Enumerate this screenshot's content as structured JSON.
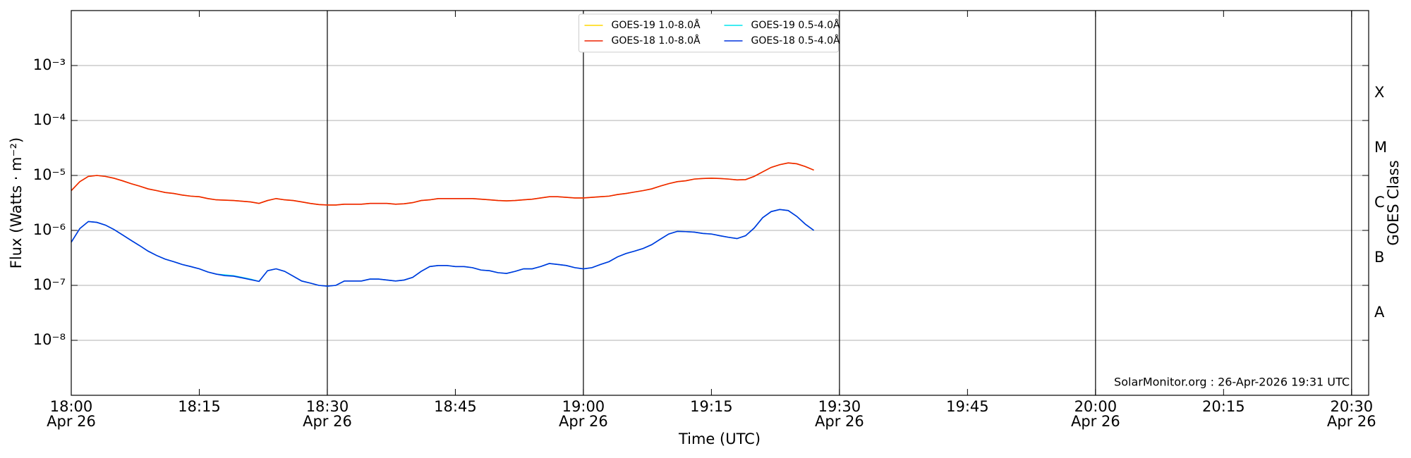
{
  "chart_data": {
    "type": "line",
    "log_y": true,
    "grid": true,
    "legend": "upper center",
    "xlabel": "Time (UTC)",
    "ylabel": "Flux (Watts · m⁻²)",
    "y2label": "GOES Class",
    "annotation": "SolarMonitor.org : 26-Apr-2026 19:31 UTC",
    "xlim": [
      "18:00",
      "20:32"
    ],
    "xticks": [
      {
        "value": "18:00",
        "label": [
          "18:00",
          "Apr 26"
        ]
      },
      "18:15",
      {
        "value": "18:30",
        "label": [
          "18:30",
          "Apr 26"
        ]
      },
      "18:45",
      {
        "value": "19:00",
        "label": [
          "19:00",
          "Apr 26"
        ]
      },
      "19:15",
      {
        "value": "19:30",
        "label": [
          "19:30",
          "Apr 26"
        ]
      },
      "19:45",
      {
        "value": "20:00",
        "label": [
          "20:00",
          "Apr 26"
        ]
      },
      "20:15",
      {
        "value": "20:30",
        "label": [
          "20:30",
          "Apr 26"
        ]
      }
    ],
    "vlines": [
      "18:30",
      "19:00",
      "19:30",
      "20:00",
      "20:30"
    ],
    "ylim": [
      1e-09,
      0.01
    ],
    "yticks": [
      {
        "value": 1e-08,
        "label": "10⁻⁸"
      },
      {
        "value": 1e-07,
        "label": "10⁻⁷"
      },
      {
        "value": 1e-06,
        "label": "10⁻⁶"
      },
      {
        "value": 1e-05,
        "label": "10⁻⁵"
      },
      {
        "value": 0.0001,
        "label": "10⁻⁴"
      },
      {
        "value": 0.001,
        "label": "10⁻³"
      }
    ],
    "classes": [
      {
        "label": "A",
        "range": [
          1e-08,
          1e-07
        ]
      },
      {
        "label": "B",
        "range": [
          1e-07,
          1e-06
        ]
      },
      {
        "label": "C",
        "range": [
          1e-06,
          1e-05
        ]
      },
      {
        "label": "M",
        "range": [
          1e-05,
          0.0001
        ]
      },
      {
        "label": "X",
        "range": [
          0.0001,
          0.001
        ]
      }
    ],
    "x": [
      "18:00",
      "18:01",
      "18:02",
      "18:03",
      "18:04",
      "18:05",
      "18:06",
      "18:07",
      "18:08",
      "18:09",
      "18:10",
      "18:11",
      "18:12",
      "18:13",
      "18:14",
      "18:15",
      "18:16",
      "18:17",
      "18:18",
      "18:19",
      "18:20",
      "18:21",
      "18:22",
      "18:23",
      "18:24",
      "18:25",
      "18:26",
      "18:27",
      "18:28",
      "18:29",
      "18:30",
      "18:31",
      "18:32",
      "18:33",
      "18:34",
      "18:35",
      "18:36",
      "18:37",
      "18:38",
      "18:39",
      "18:40",
      "18:41",
      "18:42",
      "18:43",
      "18:44",
      "18:45",
      "18:46",
      "18:47",
      "18:48",
      "18:49",
      "18:50",
      "18:51",
      "18:52",
      "18:53",
      "18:54",
      "18:55",
      "18:56",
      "18:57",
      "18:58",
      "18:59",
      "19:00",
      "19:01",
      "19:02",
      "19:03",
      "19:04",
      "19:05",
      "19:06",
      "19:07",
      "19:08",
      "19:09",
      "19:10",
      "19:11",
      "19:12",
      "19:13",
      "19:14",
      "19:15",
      "19:16",
      "19:17",
      "19:18",
      "19:19",
      "19:20",
      "19:21",
      "19:22",
      "19:23",
      "19:24",
      "19:25",
      "19:26",
      "19:27"
    ],
    "series": [
      {
        "name": "GOES-19 1.0-8.0Å",
        "color": "#ffd700",
        "values": [
          5.3e-06,
          7.7e-06,
          9.6e-06,
          1e-05,
          9.6e-06,
          8.9e-06,
          8e-06,
          7.1e-06,
          6.4e-06,
          5.7e-06,
          5.3e-06,
          4.9e-06,
          4.7e-06,
          4.4e-06,
          4.2e-06,
          4.1e-06,
          3.8e-06,
          3.6e-06,
          3.55e-06,
          3.5e-06,
          3.4e-06,
          3.3e-06,
          3.1e-06,
          3.5e-06,
          3.8e-06,
          3.6e-06,
          3.5e-06,
          3.3e-06,
          3.1e-06,
          2.95e-06,
          2.9e-06,
          2.9e-06,
          3e-06,
          3e-06,
          3e-06,
          3.1e-06,
          3.1e-06,
          3.1e-06,
          3e-06,
          3.05e-06,
          3.2e-06,
          3.5e-06,
          3.6e-06,
          3.8e-06,
          3.8e-06,
          3.8e-06,
          3.8e-06,
          3.8e-06,
          3.7e-06,
          3.6e-06,
          3.5e-06,
          3.45e-06,
          3.5e-06,
          3.6e-06,
          3.7e-06,
          3.9e-06,
          4.1e-06,
          4.1e-06,
          4e-06,
          3.9e-06,
          3.9e-06,
          4e-06,
          4.1e-06,
          4.2e-06,
          4.5e-06,
          4.7e-06,
          5e-06,
          5.3e-06,
          5.7e-06,
          6.4e-06,
          7.1e-06,
          7.7e-06,
          8e-06,
          8.6e-06,
          8.8e-06,
          8.9e-06,
          8.8e-06,
          8.6e-06,
          8.3e-06,
          8.4e-06,
          9.6e-06,
          1.16e-05,
          1.4e-05,
          1.57e-05,
          1.69e-05,
          1.63e-05,
          1.45e-05,
          1.25e-05
        ]
      },
      {
        "name": "GOES-18 1.0-8.0Å",
        "color": "#ee2200",
        "values": [
          5.3e-06,
          7.7e-06,
          9.6e-06,
          1e-05,
          9.6e-06,
          8.9e-06,
          8e-06,
          7.1e-06,
          6.4e-06,
          5.7e-06,
          5.3e-06,
          4.9e-06,
          4.7e-06,
          4.4e-06,
          4.2e-06,
          4.1e-06,
          3.8e-06,
          3.6e-06,
          3.55e-06,
          3.5e-06,
          3.4e-06,
          3.3e-06,
          3.1e-06,
          3.5e-06,
          3.8e-06,
          3.6e-06,
          3.5e-06,
          3.3e-06,
          3.1e-06,
          2.95e-06,
          2.9e-06,
          2.9e-06,
          3e-06,
          3e-06,
          3e-06,
          3.1e-06,
          3.1e-06,
          3.1e-06,
          3e-06,
          3.05e-06,
          3.2e-06,
          3.5e-06,
          3.6e-06,
          3.8e-06,
          3.8e-06,
          3.8e-06,
          3.8e-06,
          3.8e-06,
          3.7e-06,
          3.6e-06,
          3.5e-06,
          3.45e-06,
          3.5e-06,
          3.6e-06,
          3.7e-06,
          3.9e-06,
          4.1e-06,
          4.1e-06,
          4e-06,
          3.9e-06,
          3.9e-06,
          4e-06,
          4.1e-06,
          4.2e-06,
          4.5e-06,
          4.7e-06,
          5e-06,
          5.3e-06,
          5.7e-06,
          6.4e-06,
          7.1e-06,
          7.7e-06,
          8e-06,
          8.6e-06,
          8.8e-06,
          8.9e-06,
          8.8e-06,
          8.6e-06,
          8.3e-06,
          8.4e-06,
          9.6e-06,
          1.16e-05,
          1.4e-05,
          1.57e-05,
          1.69e-05,
          1.63e-05,
          1.45e-05,
          1.25e-05
        ]
      },
      {
        "name": "GOES-19 0.5-4.0Å",
        "color": "#00e5ee",
        "values": [
          6.1e-07,
          1.08e-06,
          1.45e-06,
          1.4e-06,
          1.25e-06,
          1.04e-06,
          8.3e-07,
          6.6e-07,
          5.3e-07,
          4.2e-07,
          3.5e-07,
          3e-07,
          2.7e-07,
          2.4e-07,
          2.2e-07,
          2e-07,
          1.75e-07,
          1.6e-07,
          1.55e-07,
          1.5e-07,
          1.4e-07,
          1.3e-07,
          1.18e-07,
          1.85e-07,
          2e-07,
          1.8e-07,
          1.47e-07,
          1.2e-07,
          1.1e-07,
          1e-07,
          9.7e-08,
          1e-07,
          1.2e-07,
          1.2e-07,
          1.2e-07,
          1.3e-07,
          1.3e-07,
          1.25e-07,
          1.2e-07,
          1.25e-07,
          1.4e-07,
          1.8e-07,
          2.2e-07,
          2.3e-07,
          2.3e-07,
          2.2e-07,
          2.2e-07,
          2.1e-07,
          1.9e-07,
          1.85e-07,
          1.7e-07,
          1.65e-07,
          1.8e-07,
          2e-07,
          2e-07,
          2.2e-07,
          2.5e-07,
          2.4e-07,
          2.3e-07,
          2.1e-07,
          2e-07,
          2.1e-07,
          2.4e-07,
          2.7e-07,
          3.3e-07,
          3.8e-07,
          4.2e-07,
          4.7e-07,
          5.5e-07,
          6.9e-07,
          8.6e-07,
          9.6e-07,
          9.5e-07,
          9.3e-07,
          8.8e-07,
          8.6e-07,
          8e-07,
          7.5e-07,
          7.1e-07,
          8e-07,
          1.1e-06,
          1.7e-06,
          2.2e-06,
          2.4e-06,
          2.3e-06,
          1.8e-06,
          1.3e-06,
          1e-06
        ]
      },
      {
        "name": "GOES-18 0.5-4.0Å",
        "color": "#0033dd",
        "values": [
          6.1e-07,
          1.08e-06,
          1.45e-06,
          1.4e-06,
          1.25e-06,
          1.04e-06,
          8.3e-07,
          6.6e-07,
          5.3e-07,
          4.2e-07,
          3.5e-07,
          3e-07,
          2.7e-07,
          2.4e-07,
          2.2e-07,
          2e-07,
          1.75e-07,
          1.6e-07,
          1.5e-07,
          1.47e-07,
          1.37e-07,
          1.27e-07,
          1.18e-07,
          1.85e-07,
          2e-07,
          1.8e-07,
          1.47e-07,
          1.2e-07,
          1.1e-07,
          1e-07,
          9.7e-08,
          1e-07,
          1.2e-07,
          1.2e-07,
          1.2e-07,
          1.3e-07,
          1.3e-07,
          1.25e-07,
          1.2e-07,
          1.25e-07,
          1.4e-07,
          1.8e-07,
          2.2e-07,
          2.3e-07,
          2.3e-07,
          2.2e-07,
          2.2e-07,
          2.1e-07,
          1.9e-07,
          1.85e-07,
          1.7e-07,
          1.65e-07,
          1.8e-07,
          2e-07,
          2e-07,
          2.2e-07,
          2.5e-07,
          2.4e-07,
          2.3e-07,
          2.1e-07,
          2e-07,
          2.1e-07,
          2.4e-07,
          2.7e-07,
          3.3e-07,
          3.8e-07,
          4.2e-07,
          4.7e-07,
          5.5e-07,
          6.9e-07,
          8.6e-07,
          9.6e-07,
          9.5e-07,
          9.3e-07,
          8.8e-07,
          8.6e-07,
          8e-07,
          7.5e-07,
          7.1e-07,
          8e-07,
          1.1e-06,
          1.7e-06,
          2.2e-06,
          2.4e-06,
          2.3e-06,
          1.8e-06,
          1.3e-06,
          1e-06
        ]
      }
    ]
  }
}
